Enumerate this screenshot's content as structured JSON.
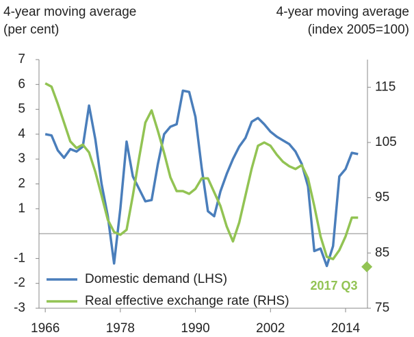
{
  "chart_data": {
    "type": "line",
    "title_left": [
      "4-year moving average",
      "(per cent)"
    ],
    "title_right": [
      "4-year moving average",
      "(index 2005=100)"
    ],
    "x": [
      1966,
      1967,
      1968,
      1969,
      1970,
      1971,
      1972,
      1973,
      1974,
      1975,
      1976,
      1977,
      1978,
      1979,
      1980,
      1981,
      1982,
      1983,
      1984,
      1985,
      1986,
      1987,
      1988,
      1989,
      1990,
      1991,
      1992,
      1993,
      1994,
      1995,
      1996,
      1997,
      1998,
      1999,
      2000,
      2001,
      2002,
      2003,
      2004,
      2005,
      2006,
      2007,
      2008,
      2009,
      2010,
      2011,
      2012,
      2013,
      2014,
      2015,
      2016
    ],
    "series": [
      {
        "name": "Domestic demand (LHS)",
        "color": "#4a7ebb",
        "axis": "y",
        "values": [
          4.0,
          3.95,
          3.35,
          3.05,
          3.4,
          3.3,
          3.5,
          5.15,
          3.8,
          2.0,
          0.7,
          -1.2,
          1.0,
          3.7,
          2.3,
          1.8,
          1.3,
          1.35,
          2.8,
          4.0,
          4.3,
          4.4,
          5.75,
          5.7,
          4.7,
          2.65,
          0.9,
          0.7,
          1.7,
          2.4,
          3.0,
          3.5,
          3.85,
          4.5,
          4.65,
          4.4,
          4.1,
          3.9,
          3.75,
          3.6,
          3.3,
          2.8,
          1.9,
          -0.7,
          -0.6,
          -1.3,
          -0.5,
          2.3,
          2.6,
          3.25,
          3.2
        ]
      },
      {
        "name": "Real effective exchange rate (RHS)",
        "color": "#92c353",
        "axis": "y2",
        "values": [
          115.7,
          115.1,
          112,
          108.6,
          105.2,
          104,
          104.6,
          103.2,
          99.7,
          95.4,
          91,
          88.8,
          88.3,
          89.2,
          95.4,
          102.2,
          108.6,
          110.8,
          107.1,
          103.1,
          98.7,
          96.2,
          96.2,
          95.7,
          96.6,
          98.5,
          98.5,
          96,
          93.5,
          89.8,
          87.1,
          90.5,
          95.4,
          100.3,
          104.4,
          105,
          104.4,
          102.8,
          101.5,
          100.7,
          100.2,
          100.9,
          98.5,
          93.5,
          88,
          84.3,
          83.9,
          85.5,
          88,
          91.4,
          91.4
        ]
      }
    ],
    "annotation": {
      "text": "2017 Q3",
      "x": 2017.4,
      "value": 82.5,
      "color": "#92c353",
      "axis": "y2"
    },
    "xlim": [
      1965,
      2017.5
    ],
    "xticks": [
      1966,
      1978,
      1990,
      2002,
      2014
    ],
    "ylim": [
      -3,
      7
    ],
    "yticks": [
      7,
      6,
      5,
      4,
      3,
      2,
      1,
      -1,
      -2,
      -3
    ],
    "y2lim": [
      75,
      120
    ],
    "y2ticks": [
      115,
      105,
      95,
      85,
      75
    ],
    "legend": "lower left",
    "grid": false
  }
}
